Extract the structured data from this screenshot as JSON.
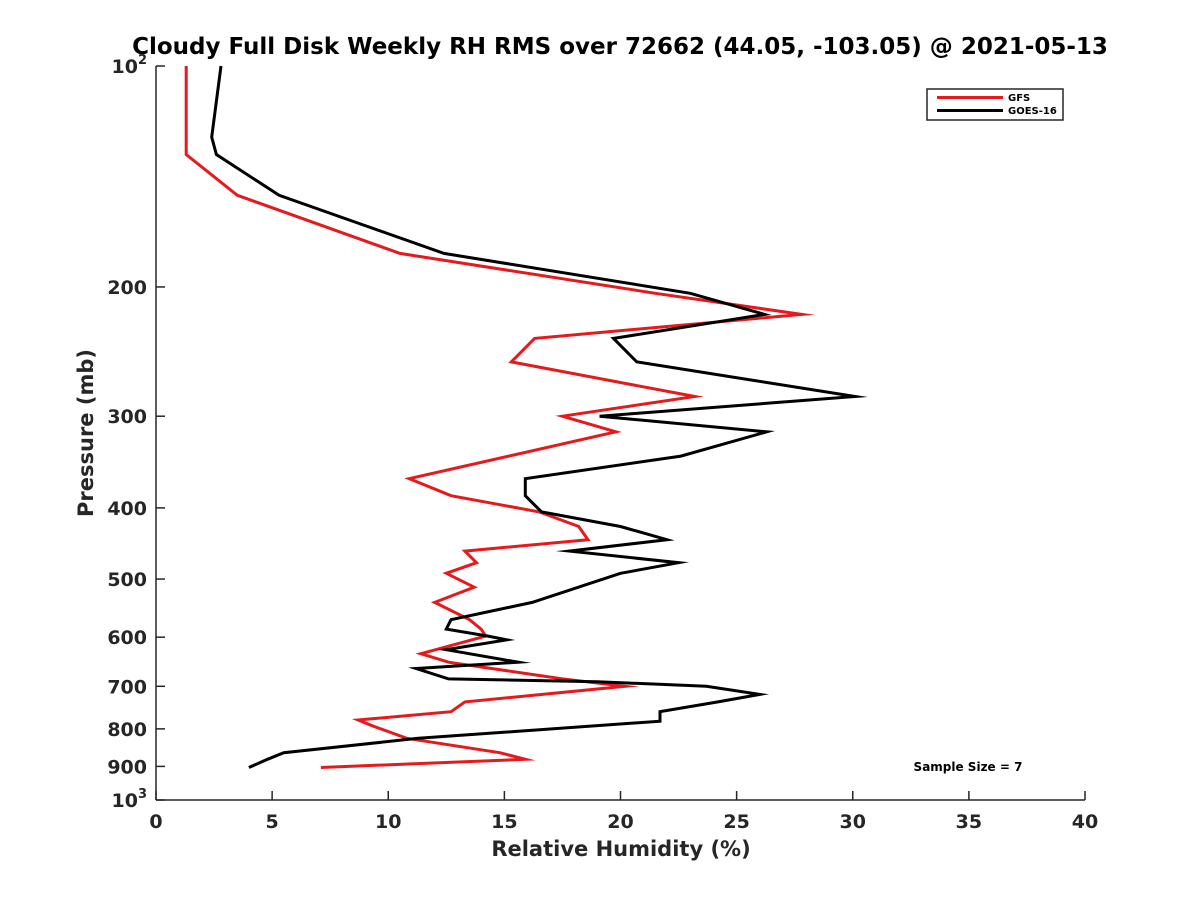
{
  "chart_data": {
    "type": "line",
    "title": "Cloudy Full Disk Weekly RH RMS over 72662 (44.05, -103.05) @ 2021-05-13",
    "xlabel": "Relative Humidity (%)",
    "ylabel": "Pressure (mb)",
    "xlim": [
      0,
      40
    ],
    "ylim": [
      100,
      1000
    ],
    "yscale": "log",
    "y_reversed": true,
    "x_ticks": [
      0,
      5,
      10,
      15,
      20,
      25,
      30,
      35,
      40
    ],
    "x_tick_labels": [
      "0",
      "5",
      "10",
      "15",
      "20",
      "25",
      "30",
      "35",
      "40"
    ],
    "y_ticks": [
      100,
      200,
      300,
      400,
      500,
      600,
      700,
      800,
      900,
      1000
    ],
    "y_tick_labels": [
      {
        "base": "10",
        "sup": "2"
      },
      {
        "base": "200",
        "sup": ""
      },
      {
        "base": "300",
        "sup": ""
      },
      {
        "base": "400",
        "sup": ""
      },
      {
        "base": "500",
        "sup": ""
      },
      {
        "base": "600",
        "sup": ""
      },
      {
        "base": "700",
        "sup": ""
      },
      {
        "base": "800",
        "sup": ""
      },
      {
        "base": "900",
        "sup": ""
      },
      {
        "base": "10",
        "sup": "3"
      }
    ],
    "grid": false,
    "legend_position": "top-right",
    "series": [
      {
        "name": "GFS",
        "color": "#e41a1c",
        "points": [
          [
            1.3,
            100
          ],
          [
            1.3,
            125
          ],
          [
            1.3,
            132
          ],
          [
            3.5,
            150
          ],
          [
            10.5,
            180
          ],
          [
            21.5,
            204
          ],
          [
            27.8,
            218
          ],
          [
            16.3,
            235
          ],
          [
            15.3,
            253
          ],
          [
            23.2,
            282
          ],
          [
            17.5,
            300
          ],
          [
            19.8,
            315
          ],
          [
            10.9,
            365
          ],
          [
            12.7,
            385
          ],
          [
            16.5,
            405
          ],
          [
            18.2,
            424
          ],
          [
            18.6,
            442
          ],
          [
            13.3,
            458
          ],
          [
            13.8,
            475
          ],
          [
            12.5,
            491
          ],
          [
            13.7,
            513
          ],
          [
            12.0,
            538
          ],
          [
            13.5,
            568
          ],
          [
            14.0,
            585
          ],
          [
            14.2,
            598
          ],
          [
            11.4,
            632
          ],
          [
            12.6,
            649
          ],
          [
            17.5,
            684
          ],
          [
            20.2,
            700
          ],
          [
            13.3,
            735
          ],
          [
            12.7,
            758
          ],
          [
            8.7,
            778
          ],
          [
            9.3,
            792
          ],
          [
            10.8,
            824
          ],
          [
            14.8,
            862
          ],
          [
            15.9,
            880
          ],
          [
            7.1,
            903
          ]
        ]
      },
      {
        "name": "GOES-16",
        "color": "#000000",
        "points": [
          [
            2.8,
            100
          ],
          [
            2.4,
            125
          ],
          [
            2.6,
            132
          ],
          [
            5.3,
            150
          ],
          [
            12.4,
            180
          ],
          [
            23.0,
            204
          ],
          [
            26.2,
            218
          ],
          [
            19.7,
            235
          ],
          [
            20.7,
            253
          ],
          [
            30.1,
            282
          ],
          [
            19.1,
            300
          ],
          [
            26.3,
            315
          ],
          [
            22.6,
            340
          ],
          [
            15.9,
            365
          ],
          [
            15.9,
            385
          ],
          [
            16.6,
            405
          ],
          [
            20.0,
            424
          ],
          [
            22.0,
            442
          ],
          [
            17.8,
            458
          ],
          [
            22.5,
            475
          ],
          [
            20.0,
            491
          ],
          [
            16.2,
            538
          ],
          [
            12.7,
            568
          ],
          [
            12.5,
            585
          ],
          [
            14.3,
            598
          ],
          [
            15.1,
            605
          ],
          [
            12.5,
            624
          ],
          [
            15.6,
            649
          ],
          [
            11.2,
            662
          ],
          [
            12.6,
            684
          ],
          [
            19.0,
            690
          ],
          [
            23.7,
            700
          ],
          [
            26.0,
            718
          ],
          [
            24.2,
            735
          ],
          [
            21.7,
            758
          ],
          [
            21.7,
            781
          ],
          [
            11.3,
            824
          ],
          [
            5.5,
            862
          ],
          [
            4.8,
            880
          ],
          [
            4.0,
            903
          ]
        ]
      }
    ],
    "annotation": "Sample Size = 7"
  }
}
